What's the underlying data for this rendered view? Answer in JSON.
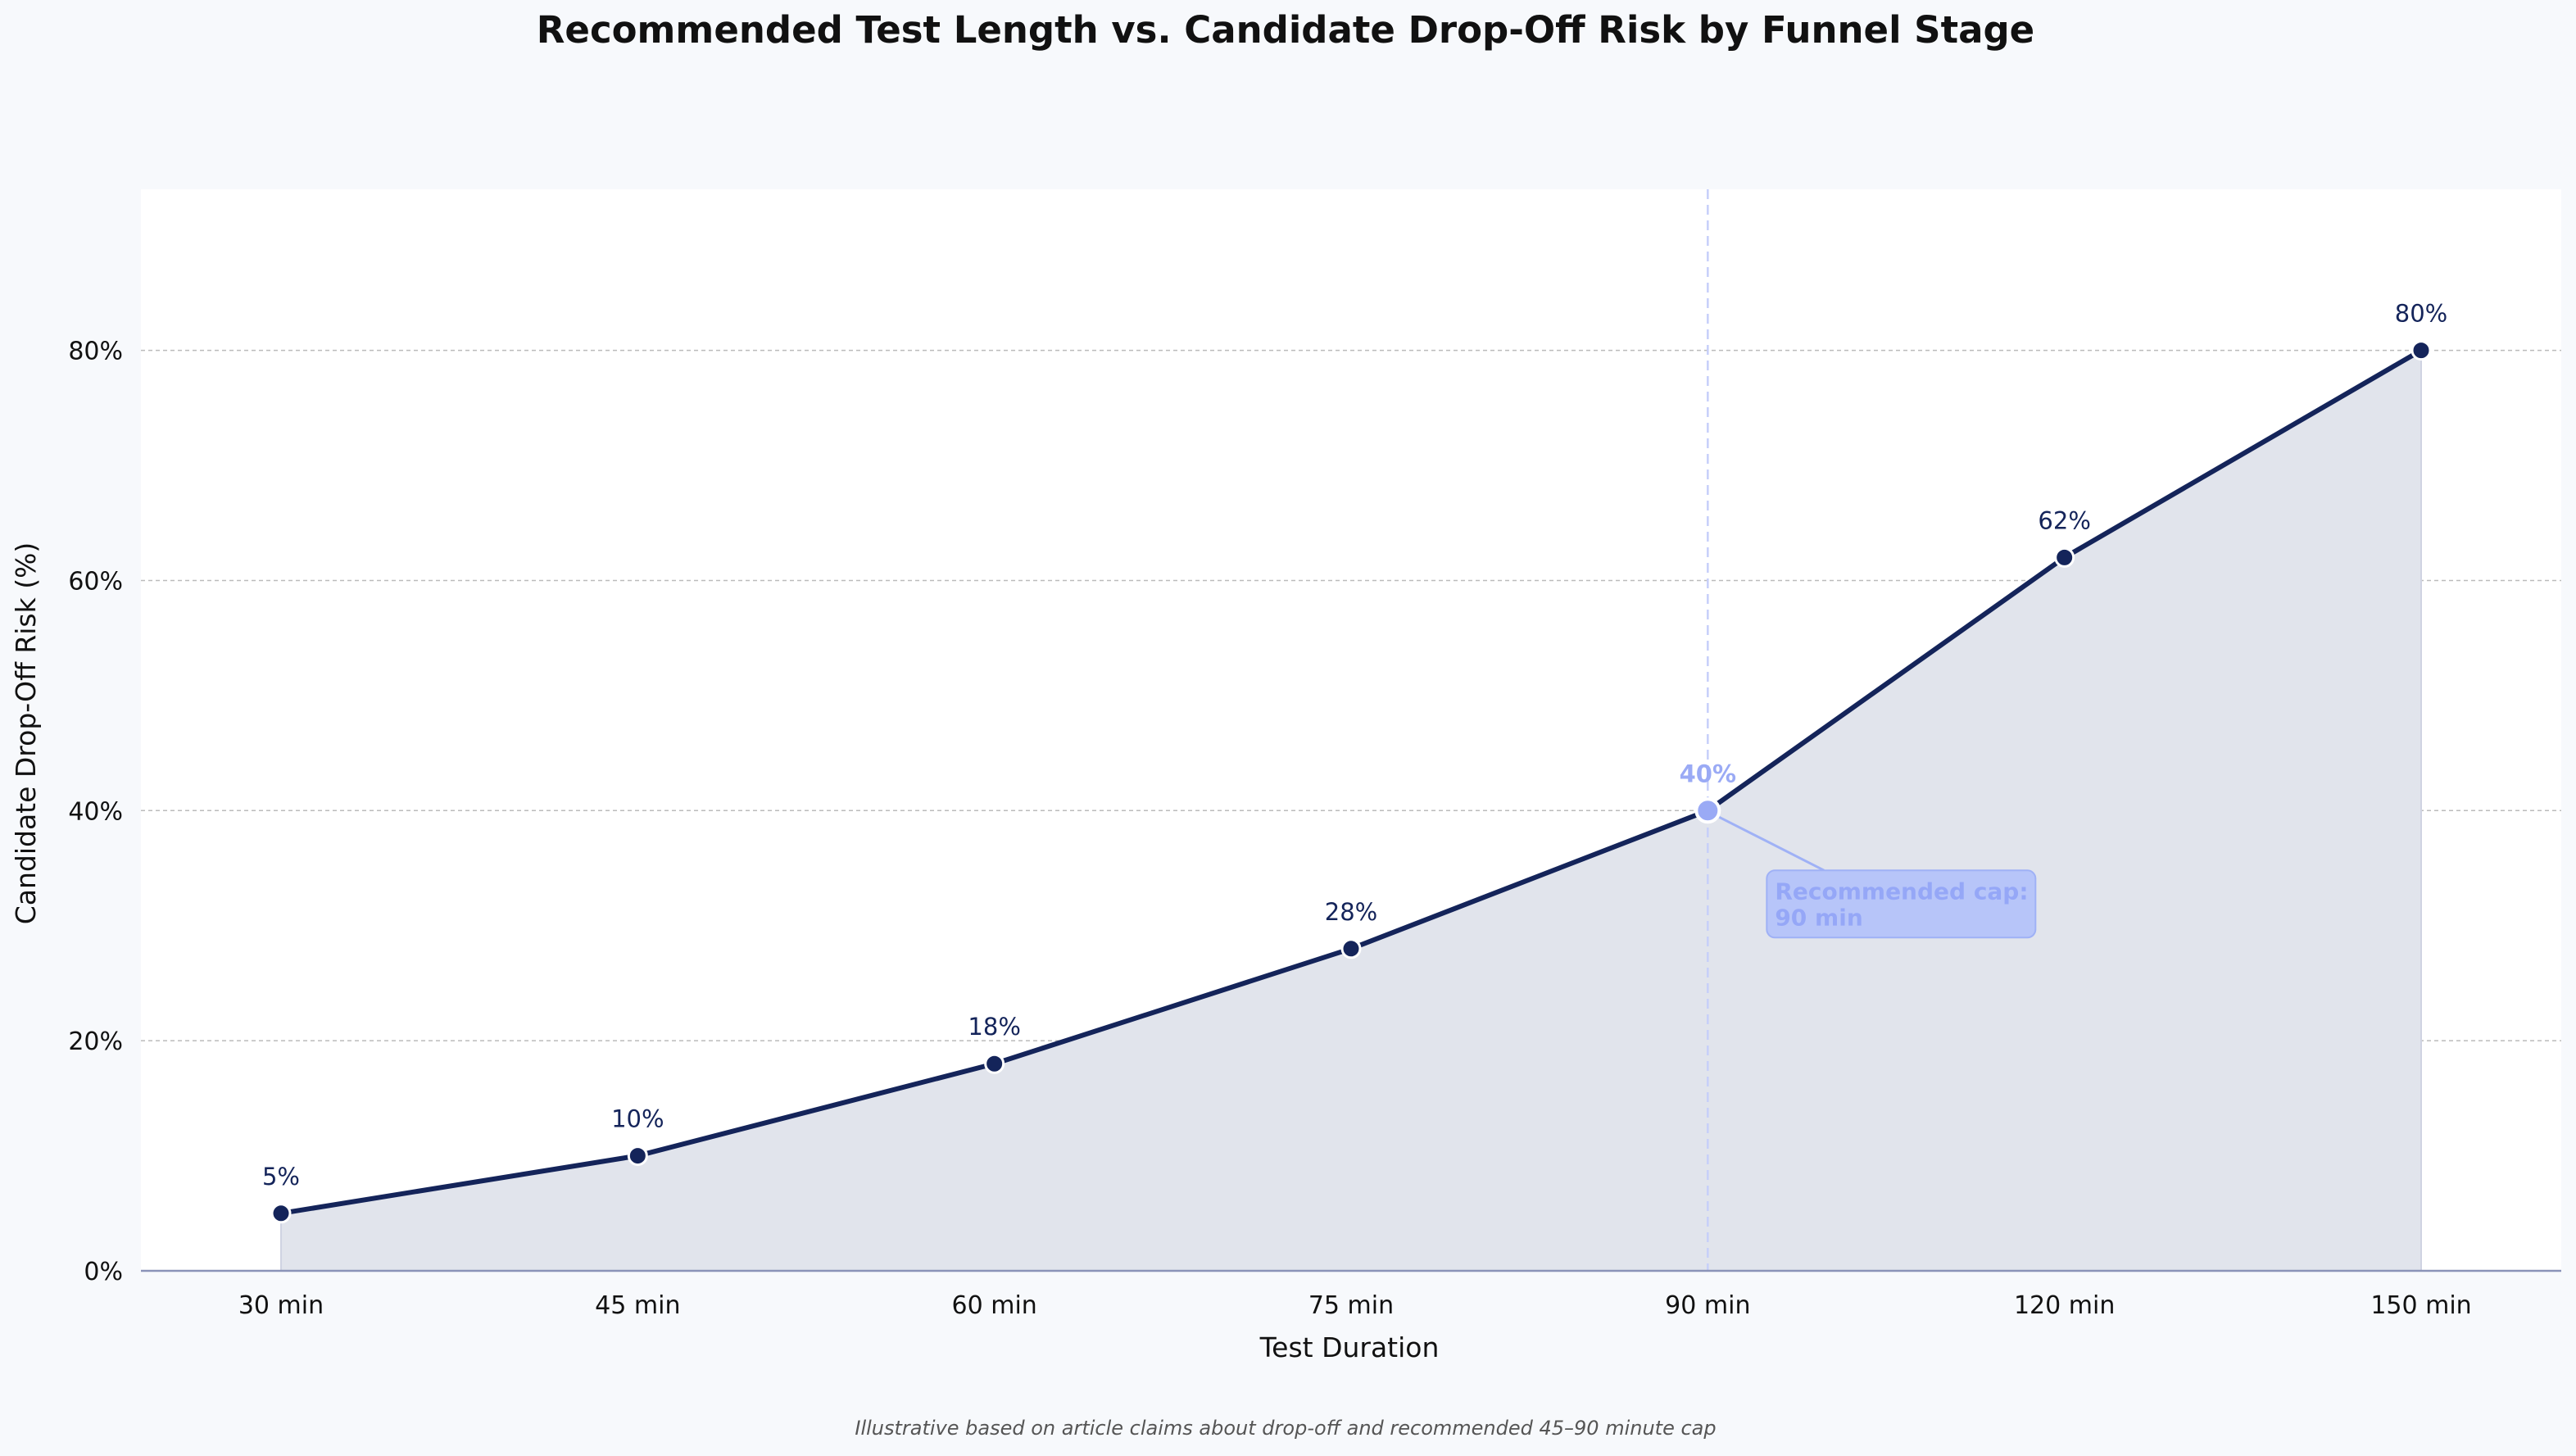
{
  "chart_data": {
    "type": "line",
    "title": "Recommended Test Length vs. Candidate Drop-Off Risk by Funnel Stage",
    "xlabel": "Test Duration",
    "ylabel": "Candidate Drop-Off Risk (%)",
    "categories": [
      "30 min",
      "45 min",
      "60 min",
      "75 min",
      "90 min",
      "120 min",
      "150 min"
    ],
    "values": [
      5,
      10,
      18,
      28,
      40,
      62,
      80
    ],
    "data_labels": [
      "5%",
      "10%",
      "18%",
      "28%",
      "40%",
      "62%",
      "80%"
    ],
    "ylim": [
      0,
      94
    ],
    "yticks": [
      0,
      20,
      40,
      60,
      80
    ],
    "ytick_labels": [
      "0%",
      "20%",
      "40%",
      "60%",
      "80%"
    ],
    "grid": "horizontal, dashed",
    "area_fill": true,
    "highlight": {
      "category": "90 min",
      "value": 40,
      "annotation": [
        "Recommended cap:",
        "90 min"
      ]
    },
    "footnote": "Illustrative based on article claims about drop-off and recommended 45–90 minute cap",
    "colors": {
      "line": "#14245a",
      "area": "#e1e4ec",
      "highlight": "#9aaaf5",
      "annotation_box": "#b7c5f9",
      "background": "#f7f9fc",
      "plot_background": "#ffffff",
      "grid": "#bbbbbb"
    }
  }
}
